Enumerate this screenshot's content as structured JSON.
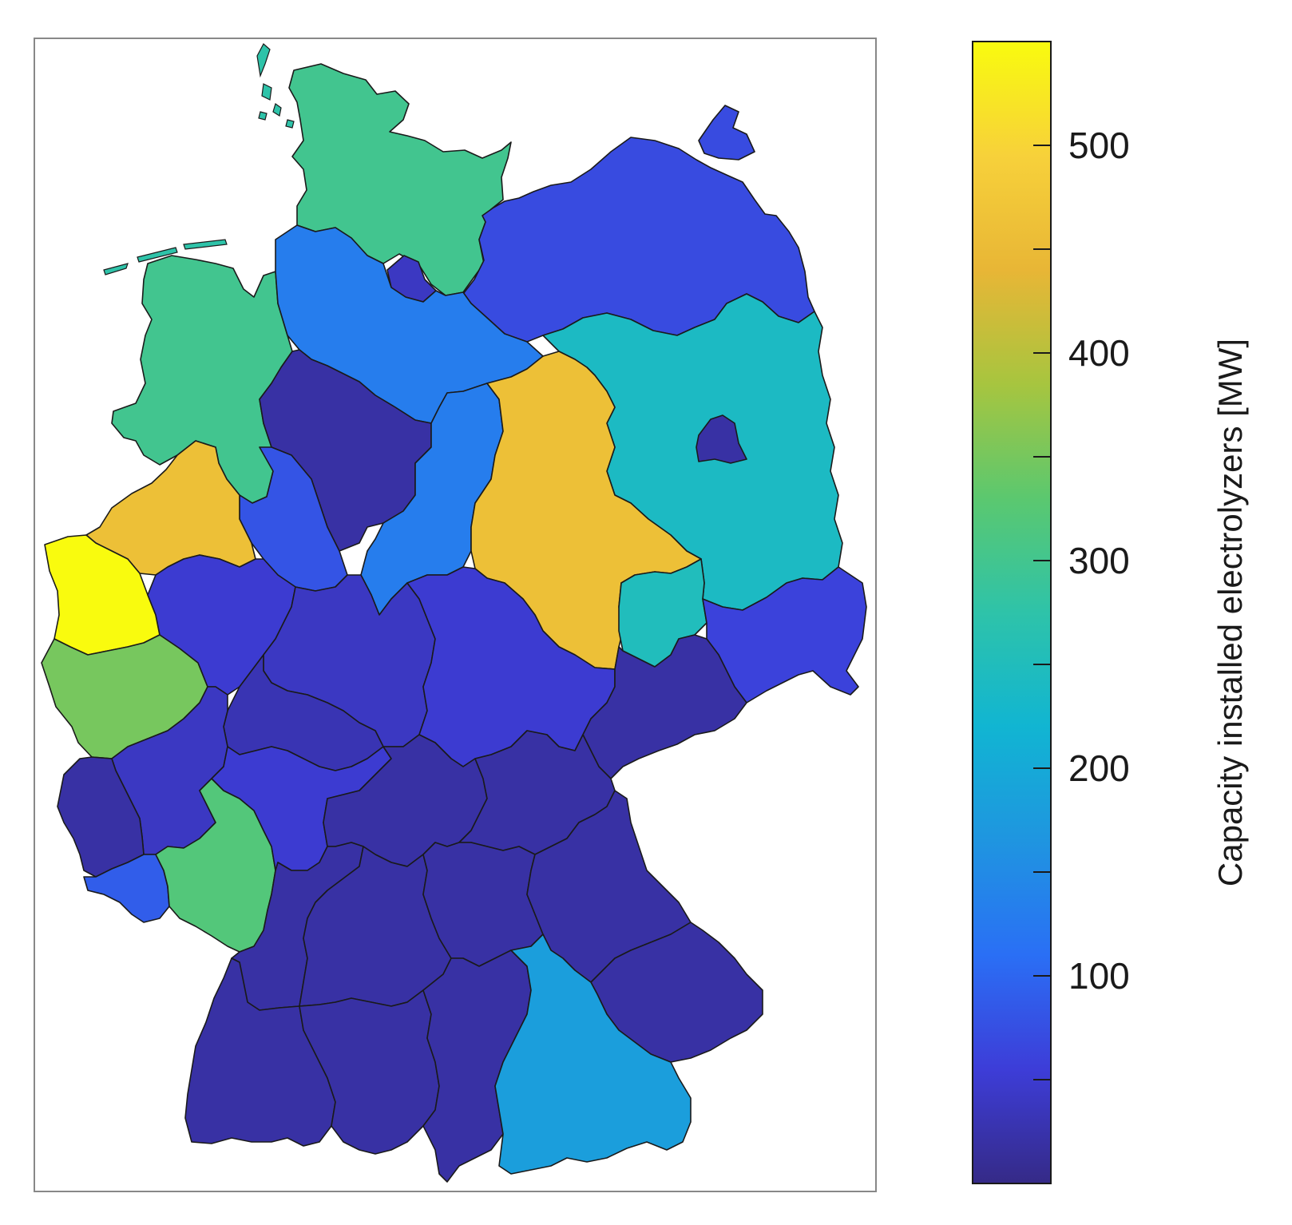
{
  "colorbar": {
    "label": "Capacity installed electrolyzers [MW]",
    "min": 0,
    "max": 550,
    "major_ticks": [
      100,
      200,
      300,
      400,
      500
    ],
    "minor_ticks": [
      50,
      150,
      250,
      350,
      450
    ],
    "stops": [
      "#352a87",
      "#3d3dd8",
      "#2a6ff5",
      "#1f95e0",
      "#11b5d2",
      "#2ec3a9",
      "#5bc86f",
      "#a7c53f",
      "#e8b636",
      "#f7d13a",
      "#f9fb0e"
    ]
  },
  "regions": [
    {
      "name": "region-schleswig-north",
      "value": 300
    },
    {
      "name": "region-hamburg",
      "value": 40
    },
    {
      "name": "region-mecklenburg",
      "value": 70
    },
    {
      "name": "region-rugen",
      "value": 70
    },
    {
      "name": "region-lower-saxony-coast",
      "value": 300
    },
    {
      "name": "region-lower-saxony-north",
      "value": 130
    },
    {
      "name": "region-lower-saxony-central",
      "value": 20
    },
    {
      "name": "region-lower-saxony-south",
      "value": 80
    },
    {
      "name": "region-brandenburg",
      "value": 240
    },
    {
      "name": "region-berlin",
      "value": 20
    },
    {
      "name": "region-altmark",
      "value": 130
    },
    {
      "name": "region-saxony-anhalt",
      "value": 460
    },
    {
      "name": "region-westphalia-north",
      "value": 460
    },
    {
      "name": "region-rhine-north",
      "value": 550
    },
    {
      "name": "region-rhine-south",
      "value": 350
    },
    {
      "name": "region-westphalia-east",
      "value": 50
    },
    {
      "name": "region-leipzig",
      "value": 250
    },
    {
      "name": "region-saxony-east",
      "value": 60
    },
    {
      "name": "region-hesse-north",
      "value": 40
    },
    {
      "name": "region-thuringia",
      "value": 50
    },
    {
      "name": "region-saxony-west",
      "value": 20
    },
    {
      "name": "region-hesse-central",
      "value": 30
    },
    {
      "name": "region-rhineland-north",
      "value": 40
    },
    {
      "name": "region-saar-west",
      "value": 20
    },
    {
      "name": "region-saar",
      "value": 90
    },
    {
      "name": "region-palatinate",
      "value": 320
    },
    {
      "name": "region-hesse-south",
      "value": 50
    },
    {
      "name": "region-franconia-west",
      "value": 20
    },
    {
      "name": "region-franconia-north",
      "value": 20
    },
    {
      "name": "region-baden-north",
      "value": 20
    },
    {
      "name": "region-wurttemberg-north",
      "value": 20
    },
    {
      "name": "region-franconia-central",
      "value": 20
    },
    {
      "name": "region-upper-palatinate",
      "value": 20
    },
    {
      "name": "region-lower-bavaria",
      "value": 20
    },
    {
      "name": "region-baden-south",
      "value": 20
    },
    {
      "name": "region-wurttemberg-south",
      "value": 20
    },
    {
      "name": "region-swabia",
      "value": 20
    },
    {
      "name": "region-upper-bavaria",
      "value": 180
    }
  ]
}
